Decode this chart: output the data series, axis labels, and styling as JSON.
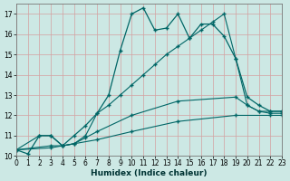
{
  "background_color": "#cce8e4",
  "grid_color": "#d4a0a0",
  "line_color": "#006666",
  "xlabel": "Humidex (Indice chaleur)",
  "xlim": [
    0,
    23
  ],
  "ylim": [
    10,
    17.5
  ],
  "yticks": [
    10,
    11,
    12,
    13,
    14,
    15,
    16,
    17
  ],
  "xticks": [
    0,
    1,
    2,
    3,
    4,
    5,
    6,
    7,
    8,
    9,
    10,
    11,
    12,
    13,
    14,
    15,
    16,
    17,
    18,
    19,
    20,
    21,
    22,
    23
  ],
  "line1_x": [
    0,
    1,
    2,
    3,
    4,
    5,
    6,
    7,
    8,
    9,
    10,
    11,
    12,
    13,
    14,
    15,
    16,
    17,
    18,
    19,
    20,
    21,
    22,
    23
  ],
  "line1_y": [
    10.3,
    10.1,
    11.0,
    11.0,
    10.5,
    11.0,
    11.5,
    12.1,
    13.0,
    15.2,
    17.0,
    17.3,
    16.2,
    16.3,
    17.0,
    15.8,
    16.5,
    16.5,
    15.9,
    14.8,
    12.9,
    12.5,
    12.2,
    12.2
  ],
  "line2_x": [
    0,
    2,
    3,
    4,
    5,
    6,
    7,
    8,
    9,
    10,
    11,
    12,
    13,
    14,
    15,
    16,
    17,
    18,
    19,
    20,
    21,
    22,
    23
  ],
  "line2_y": [
    10.3,
    11.0,
    11.0,
    10.5,
    10.6,
    11.0,
    12.1,
    12.5,
    13.0,
    13.5,
    14.0,
    14.5,
    15.0,
    15.4,
    15.8,
    16.2,
    16.6,
    17.0,
    14.8,
    12.5,
    12.2,
    12.2,
    12.2
  ],
  "line3_x": [
    0,
    3,
    4,
    5,
    6,
    7,
    10,
    14,
    19,
    20,
    21,
    22,
    23
  ],
  "line3_y": [
    10.3,
    10.5,
    10.5,
    10.6,
    10.9,
    11.2,
    12.0,
    12.7,
    12.9,
    12.5,
    12.2,
    12.1,
    12.1
  ],
  "line4_x": [
    0,
    3,
    7,
    10,
    14,
    19,
    22,
    23
  ],
  "line4_y": [
    10.3,
    10.4,
    10.8,
    11.2,
    11.7,
    12.0,
    12.0,
    12.0
  ],
  "xlabel_fontsize": 6.5,
  "tick_fontsize": 5.5
}
